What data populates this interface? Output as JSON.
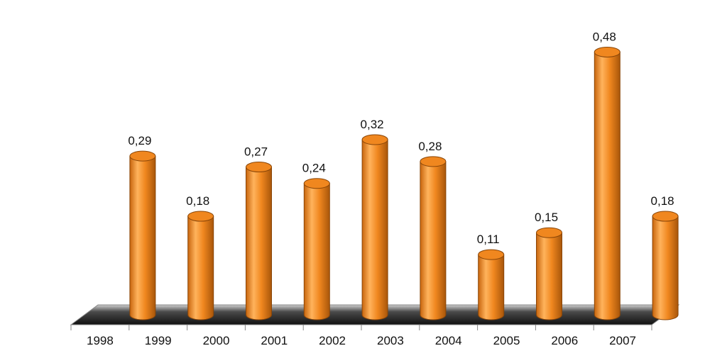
{
  "chart_data": {
    "type": "bar",
    "categories": [
      "1998",
      "1999",
      "2000",
      "2001",
      "2002",
      "2003",
      "2004",
      "2005",
      "2006",
      "2007"
    ],
    "values": [
      0.29,
      0.18,
      0.27,
      0.24,
      0.32,
      0.28,
      0.11,
      0.15,
      0.48,
      0.18
    ],
    "value_labels": [
      "0,29",
      "0,18",
      "0,27",
      "0,24",
      "0,32",
      "0,28",
      "0,11",
      "0,15",
      "0,48",
      "0,18"
    ],
    "title": "",
    "xlabel": "",
    "ylabel": "",
    "ylim": [
      0,
      0.5
    ],
    "grid": false,
    "legend": "none",
    "style": "3d-cylinder",
    "colors": {
      "bar": "#f0871f",
      "bar_light": "#ffb35c",
      "bar_dark": "#b55e0b",
      "floor": "#2a2a2a"
    }
  }
}
